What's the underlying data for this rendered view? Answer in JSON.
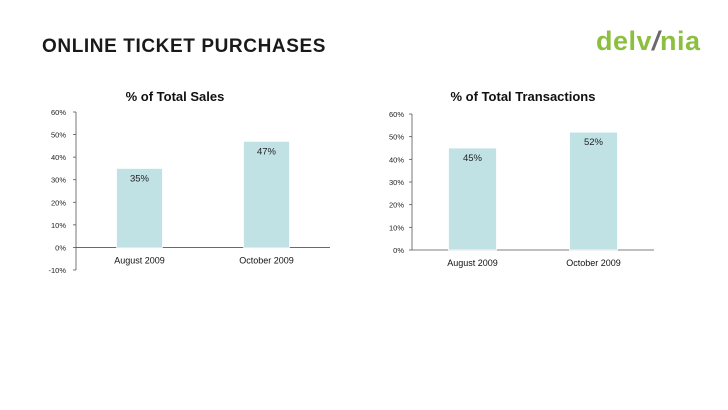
{
  "header": {
    "title": "ONLINE TICKET PURCHASES",
    "logo_before": "delv",
    "logo_slash": "/",
    "logo_after": "nia"
  },
  "colors": {
    "bar_fill": "#c0e2e5",
    "logo_green": "#8cbf3f",
    "logo_gray": "#6a6a6a"
  },
  "chart_data": [
    {
      "type": "bar",
      "title": "% of Total Sales",
      "categories": [
        "August 2009",
        "October 2009"
      ],
      "values": [
        35,
        47
      ],
      "value_labels": [
        "35%",
        "47%"
      ],
      "ylim": [
        -10,
        60
      ],
      "yticks": [
        "-10%",
        "0%",
        "10%",
        "20%",
        "30%",
        "40%",
        "50%",
        "60%"
      ],
      "grid": false
    },
    {
      "type": "bar",
      "title": "% of Total Transactions",
      "categories": [
        "August 2009",
        "October 2009"
      ],
      "values": [
        45,
        52
      ],
      "value_labels": [
        "45%",
        "52%"
      ],
      "ylim": [
        0,
        60
      ],
      "yticks": [
        "0%",
        "10%",
        "20%",
        "30%",
        "40%",
        "50%",
        "60%"
      ],
      "grid": false
    }
  ]
}
